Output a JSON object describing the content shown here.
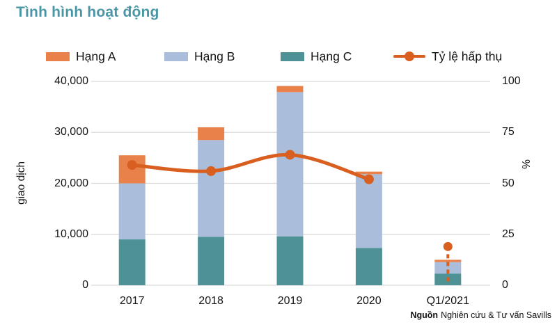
{
  "title": "Tình hình hoạt động",
  "title_color": "#4996A6",
  "legend": {
    "items": [
      {
        "label": "Hạng A",
        "color": "#E8824A",
        "type": "swatch"
      },
      {
        "label": "Hạng B",
        "color": "#AABDDB",
        "type": "swatch"
      },
      {
        "label": "Hạng C",
        "color": "#4E9296",
        "type": "swatch"
      },
      {
        "label": "Tỷ lệ hấp thụ",
        "color": "#D95F20",
        "type": "line-marker"
      }
    ]
  },
  "axes": {
    "left": {
      "title": "giao dịch",
      "ticks": [
        "0",
        "10,000",
        "20,000",
        "30,000",
        "40,000"
      ],
      "max": 40000
    },
    "right": {
      "title": "%",
      "ticks": [
        "0",
        "25",
        "50",
        "75",
        "100"
      ],
      "max": 100
    }
  },
  "source": {
    "bold": "Nguồn",
    "rest": "Nghiên cứu & Tư vấn Savills"
  },
  "colors": {
    "hang_a": "#E8824A",
    "hang_b": "#AABDDB",
    "hang_c": "#4E9296",
    "absorption_line": "#D95F20",
    "gridline": "#D9D9D9"
  },
  "chart_data": {
    "type": "stacked-bar+line",
    "categories": [
      "2017",
      "2018",
      "2019",
      "2020",
      "Q1/2021"
    ],
    "series": [
      {
        "name": "Hạng A",
        "values": [
          5500,
          2500,
          1200,
          500,
          450
        ],
        "color": "#E8824A"
      },
      {
        "name": "Hạng B",
        "values": [
          11000,
          19000,
          28300,
          14500,
          2250
        ],
        "color": "#AABDDB"
      },
      {
        "name": "Hạng C",
        "values": [
          9000,
          9500,
          9600,
          7300,
          2300
        ],
        "color": "#4E9296"
      }
    ],
    "stack_bottom_to_top": [
      "Hạng C",
      "Hạng B",
      "Hạng A"
    ],
    "line": {
      "name": "Tỷ lệ hấp thụ",
      "values": [
        59,
        56,
        64,
        52,
        19
      ],
      "color": "#D95F20",
      "last_point_disconnected": true
    },
    "ylabel_left": "giao dịch",
    "ylabel_right": "%",
    "ylim_left": [
      0,
      40000
    ],
    "ylim_right": [
      0,
      100
    ],
    "grid": true,
    "legend_position": "top"
  }
}
